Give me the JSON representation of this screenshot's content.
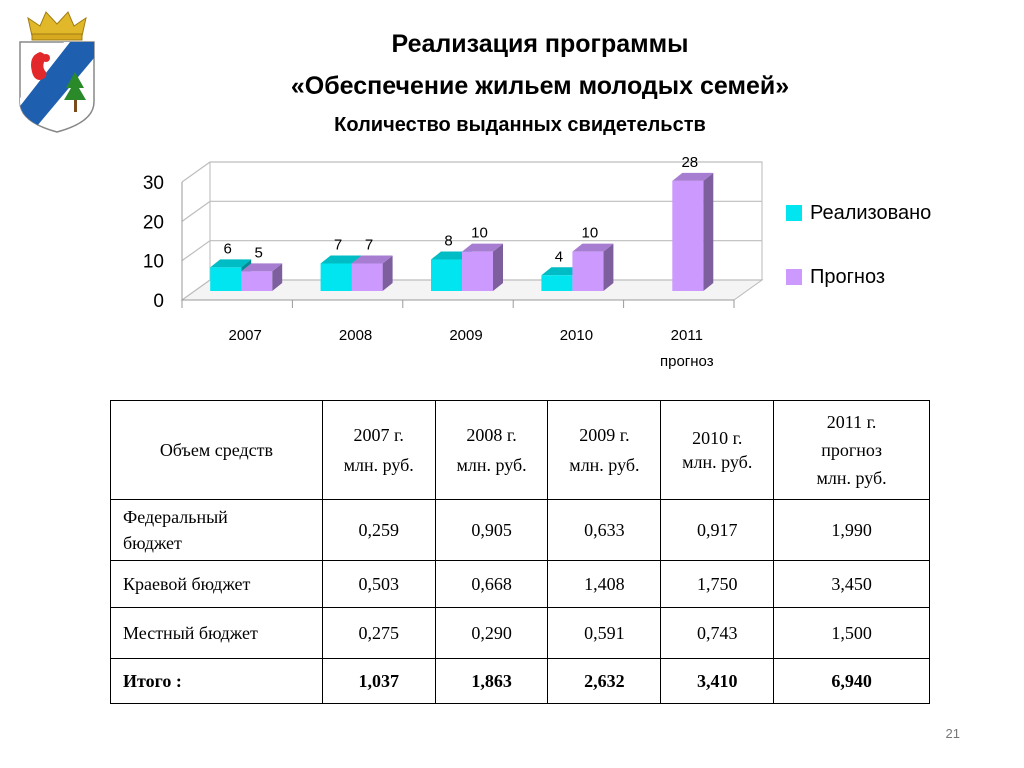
{
  "slide": {
    "title_line1": "Реализация программы",
    "title_line2": "«Обеспечение жильем молодых семей»",
    "page_number": "21"
  },
  "chart_data": {
    "type": "bar",
    "title": "Количество выданных свидетельств",
    "categories": [
      "2007",
      "2008",
      "2009",
      "2010",
      "2011"
    ],
    "category_sublabels": [
      "",
      "",
      "",
      "",
      "прогноз"
    ],
    "series": [
      {
        "name": "Реализовано",
        "values": [
          6,
          7,
          8,
          4,
          null
        ],
        "color": "#00e5ef"
      },
      {
        "name": "Прогноз",
        "values": [
          5,
          7,
          10,
          10,
          28
        ],
        "color": "#cc99ff"
      }
    ],
    "ylim": [
      0,
      30
    ],
    "yticks": [
      0,
      10,
      20,
      30
    ],
    "grid": true,
    "legend": "right",
    "three_d": true
  },
  "table": {
    "headers": [
      {
        "line1": "Объем  средств",
        "line2": "",
        "line3": ""
      },
      {
        "line1": "2007 г.",
        "line2": "млн. руб.",
        "line3": ""
      },
      {
        "line1": "2008 г.",
        "line2": "млн. руб.",
        "line3": ""
      },
      {
        "line1": "2009 г.",
        "line2": "млн. руб.",
        "line3": ""
      },
      {
        "line1": "2010 г.",
        "line2": "млн. руб.",
        "line3": ""
      },
      {
        "line1": "2011 г.",
        "line2": "прогноз",
        "line3": "млн. руб."
      }
    ],
    "rows": [
      {
        "label_line1": "Федеральный",
        "label_line2": "бюджет",
        "values": [
          "0,259",
          "0,905",
          "0,633",
          "0,917",
          "1,990"
        ]
      },
      {
        "label_line1": "Краевой бюджет",
        "label_line2": "",
        "values": [
          "0,503",
          "0,668",
          "1,408",
          "1,750",
          "3,450"
        ]
      },
      {
        "label_line1": "Местный бюджет",
        "label_line2": "",
        "values": [
          "0,275",
          "0,290",
          "0,591",
          "0,743",
          "1,500"
        ]
      }
    ],
    "total": {
      "label": "Итого :",
      "values": [
        "1,037",
        "1,863",
        "2,632",
        "3,410",
        "6,940"
      ]
    }
  }
}
